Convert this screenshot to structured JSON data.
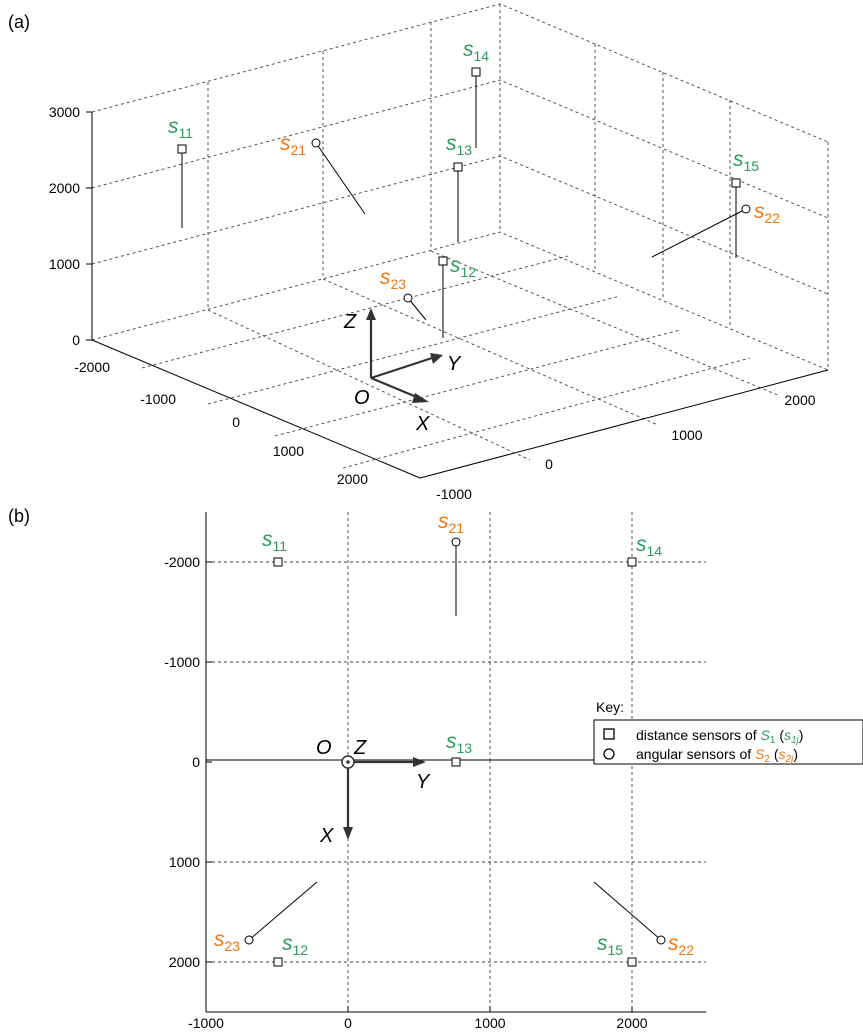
{
  "panel_a": {
    "tag": "(a)",
    "z_ticks": [
      "0",
      "1000",
      "2000",
      "3000"
    ],
    "x_ticks": [
      "-2000",
      "-1000",
      "0",
      "1000",
      "2000"
    ],
    "y_ticks": [
      "-1000",
      "0",
      "1000",
      "2000"
    ],
    "axes": {
      "origin": "O",
      "x": "X",
      "y": "Y",
      "z": "Z"
    }
  },
  "panel_b": {
    "tag": "(b)",
    "x_ticks": [
      "-1000",
      "0",
      "1000",
      "2000"
    ],
    "y_ticks": [
      "-2000",
      "-1000",
      "0",
      "1000",
      "2000"
    ],
    "axes": {
      "origin": "O",
      "x": "X",
      "y": "Y",
      "z": "Z"
    }
  },
  "sensors": {
    "s11": {
      "base": "s",
      "sub": "11"
    },
    "s12": {
      "base": "s",
      "sub": "12"
    },
    "s13": {
      "base": "s",
      "sub": "13"
    },
    "s14": {
      "base": "s",
      "sub": "14"
    },
    "s15": {
      "base": "s",
      "sub": "15"
    },
    "s21": {
      "base": "s",
      "sub": "21"
    },
    "s22": {
      "base": "s",
      "sub": "22"
    },
    "s23": {
      "base": "s",
      "sub": "23"
    }
  },
  "key": {
    "title": "Key:",
    "distance_prefix": "distance sensors of",
    "distance_set": "S",
    "distance_set_sub": "1",
    "distance_open": "(",
    "distance_elem": "s",
    "distance_elem_sub": "1j",
    "distance_close": ")",
    "angular_prefix": "angular sensors of",
    "angular_set": "S",
    "angular_set_sub": "2",
    "angular_open": "(",
    "angular_elem": "s",
    "angular_elem_sub": "2j",
    "angular_close": ")"
  },
  "colors": {
    "distance": "#2e9a5c",
    "angular": "#f07812"
  }
}
